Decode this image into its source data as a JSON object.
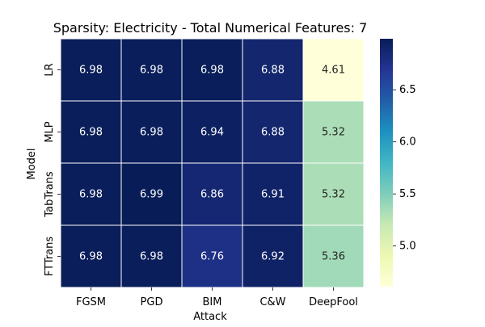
{
  "chart_data": {
    "type": "heatmap",
    "title": "Sparsity: Electricity - Total Numerical Features: 7",
    "xlabel": "Attack",
    "ylabel": "Model",
    "x_categories": [
      "FGSM",
      "PGD",
      "BIM",
      "C&W",
      "DeepFool"
    ],
    "y_categories": [
      "LR",
      "MLP",
      "TabTrans",
      "FTTrans"
    ],
    "values": [
      [
        6.98,
        6.98,
        6.98,
        6.88,
        4.61
      ],
      [
        6.98,
        6.98,
        6.94,
        6.88,
        5.32
      ],
      [
        6.98,
        6.99,
        6.86,
        6.91,
        5.32
      ],
      [
        6.98,
        6.98,
        6.76,
        6.92,
        5.36
      ]
    ],
    "value_labels": [
      [
        "6.98",
        "6.98",
        "6.98",
        "6.88",
        "4.61"
      ],
      [
        "6.98",
        "6.98",
        "6.94",
        "6.88",
        "5.32"
      ],
      [
        "6.98",
        "6.99",
        "6.86",
        "6.91",
        "5.32"
      ],
      [
        "6.98",
        "6.98",
        "6.76",
        "6.92",
        "5.36"
      ]
    ],
    "colorscale": "YlGnBu",
    "color_range": [
      4.61,
      6.99
    ],
    "colorbar_ticks": [
      "5.0",
      "5.5",
      "6.0",
      "6.5"
    ],
    "colorbar_tick_values": [
      5.0,
      5.5,
      6.0,
      6.5
    ],
    "cell_borders": true,
    "grid": false
  }
}
